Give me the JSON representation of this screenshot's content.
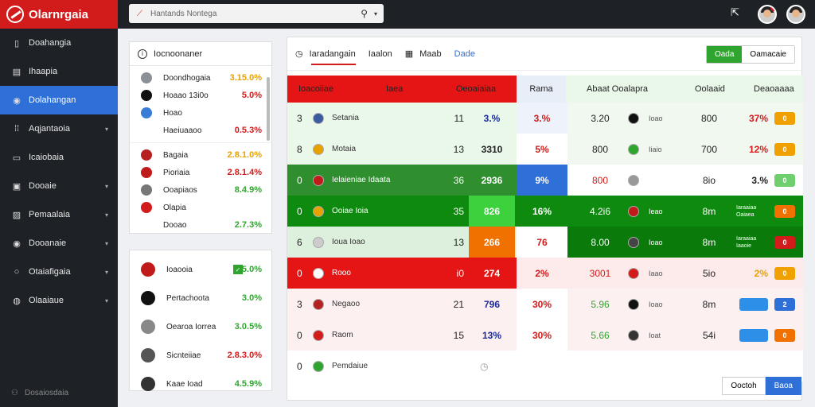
{
  "app": {
    "title": "Olarnrgaia"
  },
  "sidebar": {
    "items": [
      {
        "label": "Doahangia",
        "icon": "file-icon"
      },
      {
        "label": "Ihaapia",
        "icon": "document-icon"
      },
      {
        "label": "Dolahangan",
        "icon": "eye-icon",
        "active": true
      },
      {
        "label": "Aqjantaoia",
        "icon": "grid-icon",
        "chevron": true
      },
      {
        "label": "Icaiobaia",
        "icon": "monitor-icon"
      },
      {
        "label": "Dooaie",
        "icon": "box-icon",
        "chevron": true
      },
      {
        "label": "Pemaalaia",
        "icon": "image-icon",
        "chevron": true
      },
      {
        "label": "Dooanaie",
        "icon": "eye-icon",
        "chevron": true
      },
      {
        "label": "Otaiafigaia",
        "icon": "circle-icon",
        "chevron": true
      },
      {
        "label": "Olaaiaue",
        "icon": "globe-icon",
        "chevron": true
      }
    ],
    "footer": "Dosaiosdaia"
  },
  "search": {
    "value": "Hantands Nontega"
  },
  "left_panel": {
    "title": "Iocnoonaner",
    "groups": [
      {
        "rows": [
          {
            "name": "Doondhogaia",
            "pct": "3.15.0%",
            "color": "#e8a200",
            "crest": "#8a9096"
          },
          {
            "name": "Hoaao 13i0o",
            "pct": "5.0%",
            "color": "#d21b1b",
            "crest": "#111"
          },
          {
            "name": "Hoao",
            "pct": "",
            "color": "#222",
            "crest": "#3a7bd5"
          },
          {
            "name": "Haeiuaaoo",
            "pct": "0.5.3%",
            "color": "#d21b1b",
            "crest": ""
          }
        ]
      },
      {
        "rows": [
          {
            "name": "Bagaia",
            "pct": "2.8.1.0%",
            "color": "#e8a200",
            "crest": "#b52020"
          },
          {
            "name": "Pioriaia",
            "pct": "2.8.1.4%",
            "color": "#d21b1b",
            "crest": "#c01a1a"
          },
          {
            "name": "Ooapiaos",
            "pct": "8.4.9%",
            "color": "#2fa52f",
            "crest": "#777"
          },
          {
            "name": "Olapia",
            "pct": "",
            "color": "#222",
            "crest": "#d21b1b"
          },
          {
            "name": "Dooao",
            "pct": "2.7.3%",
            "color": "#2fa52f",
            "crest": ""
          }
        ]
      }
    ]
  },
  "left_panel2": {
    "rows": [
      {
        "name": "Ioaooia",
        "pct": "5.0%",
        "color": "#2fa52f",
        "crest": "#c01a1a",
        "check": true
      },
      {
        "name": "Pertachoota",
        "pct": "3.0%",
        "color": "#2fa52f",
        "crest": "#111"
      },
      {
        "name": "Oearoa Iorrea",
        "pct": "3.0.5%",
        "color": "#2fa52f",
        "crest": "#888"
      },
      {
        "name": "Sicnteiiae",
        "pct": "2.8.3.0%",
        "color": "#d21b1b",
        "crest": "#555"
      },
      {
        "name": "Kaae Ioad",
        "pct": "4.5.9%",
        "color": "#2fa52f",
        "crest": "#333"
      }
    ]
  },
  "tabs": [
    {
      "label": "Iaradangain",
      "icon": "clock-icon",
      "active": true
    },
    {
      "label": "Iaalon",
      "icon": ""
    },
    {
      "label": "Maab",
      "icon": "calendar-icon"
    },
    {
      "label": "Dade",
      "icon": "",
      "blue": true
    }
  ],
  "filter": {
    "on": "Oada",
    "off": "Oamacaie"
  },
  "table": {
    "headers": [
      "Ioacoiiae",
      "Iaea",
      "Oeoaiaiaa",
      "Rama",
      "Abaat Ooalapra",
      "Oolaaid",
      "Deaoaaaa"
    ],
    "rows": [
      {
        "rank": "3",
        "team": "Setania",
        "crest": "#3a5ba0",
        "pl": "11",
        "score": "3.%",
        "scoreColor": "#1a2a9a",
        "pct": "3.%",
        "pctColor": "#d21b1b",
        "away": "3.20",
        "awayColor": "#222",
        "oc": "#111",
        "op": "Ioao",
        "ot": "800",
        "ob": "37%",
        "obColor": "#d21b1b",
        "pill": "#f0a000",
        "pillTxt": "0",
        "bg": "#eaf8ea",
        "scoreBg": "",
        "pctBg": "#eef3fb",
        "rightBg": "#f0f8f0"
      },
      {
        "rank": "8",
        "team": "Motaia",
        "crest": "#e8a200",
        "pl": "13",
        "score": "3310",
        "scoreColor": "#222",
        "pct": "5%",
        "pctColor": "#d21b1b",
        "away": "800",
        "awayColor": "#222",
        "oc": "#2fa52f",
        "op": "Iiaio",
        "ot": "700",
        "ob": "12%",
        "obColor": "#d21b1b",
        "pill": "#f0a000",
        "pillTxt": "0",
        "bg": "#eaf8ea",
        "scoreBg": "",
        "pctBg": "",
        "rightBg": "#f0f8f0"
      },
      {
        "rank": "0",
        "team": "Ielaieniae Idaata",
        "crest": "#c01a1a",
        "pl": "36",
        "score": "2936",
        "scoreColor": "#fff",
        "pct": "9%",
        "pctColor": "#fff",
        "away": "800",
        "awayColor": "#d21b1b",
        "oc": "#999",
        "op": "Baga",
        "ot": "8io",
        "ob": "3.%",
        "obColor": "#222",
        "pill": "#6fcf6f",
        "pillTxt": "0",
        "bg": "#2f8f2f",
        "scoreBg": "",
        "pctBg": "#2e6fd8",
        "rightBg": "#fff",
        "dark": true
      },
      {
        "rank": "0",
        "team": "Ooiae Ioia",
        "crest": "#e8a200",
        "pl": "35",
        "score": "826",
        "scoreColor": "#fff",
        "pct": "16%",
        "pctColor": "#fff",
        "away": "4.2i6",
        "awayColor": "#fff",
        "oc": "#c01a1a",
        "op": "Ieao",
        "ot": "8m",
        "ob": "Iaraaiaa Oaiaea",
        "obColor": "#fff",
        "pill": "#f07000",
        "pillTxt": "0",
        "bg": "#0e8a0e",
        "scoreBg": "#3ed13e",
        "pctBg": "#0e8a0e",
        "rightBg": "#0e8a0e",
        "dark": true
      },
      {
        "rank": "6",
        "team": "Ioua Ioao",
        "crest": "#ccc",
        "pl": "13",
        "score": "266",
        "scoreColor": "#fff",
        "pct": "76",
        "pctColor": "#d21b1b",
        "away": "8.00",
        "awayColor": "#fff",
        "oc": "#444",
        "op": "Ioao",
        "ot": "8m",
        "ob": "Iaraaiaa Iaaoie",
        "obColor": "#fff",
        "pill": "#d21b1b",
        "pillTxt": "0",
        "bg": "#ddf0dd",
        "scoreBg": "#f07000",
        "pctBg": "",
        "rightBg": "#0a7a0a",
        "dark2": true
      },
      {
        "rank": "0",
        "team": "Rooo",
        "crest": "#fff",
        "pl": "i0",
        "score": "274",
        "scoreColor": "#fff",
        "pct": "2%",
        "pctColor": "#d21b1b",
        "away": "3001",
        "awayColor": "#d21b1b",
        "oc": "#d21b1b",
        "op": "Iaao",
        "ot": "5io",
        "ob": "2%",
        "obColor": "#e8a200",
        "pill": "#f0a000",
        "pillTxt": "0",
        "bg": "#e51515",
        "scoreBg": "",
        "pctBg": "#fdeaea",
        "rightBg": "#fdeaea",
        "red": true
      },
      {
        "rank": "3",
        "team": "Negaoo",
        "crest": "#b52020",
        "pl": "21",
        "score": "796",
        "scoreColor": "#1a2a9a",
        "pct": "30%",
        "pctColor": "#d21b1b",
        "away": "5.96",
        "awayColor": "#2fa52f",
        "oc": "#111",
        "op": "Ioao",
        "ot": "8m",
        "ob": "",
        "obColor": "#222",
        "pill": "#2e6fd8",
        "pillTxt": "2",
        "bg": "#fdf0f0",
        "scoreBg": "",
        "pctBg": "",
        "rightBg": "#fdf0f0",
        "wide": true
      },
      {
        "rank": "0",
        "team": "Raom",
        "crest": "#d21b1b",
        "pl": "15",
        "score": "13%",
        "scoreColor": "#1a2a9a",
        "pct": "30%",
        "pctColor": "#d21b1b",
        "away": "5.66",
        "awayColor": "#2fa52f",
        "oc": "#333",
        "op": "Ioat",
        "ot": "54i",
        "ob": "",
        "obColor": "#222",
        "pill": "#f07000",
        "pillTxt": "0",
        "bg": "#fdf0f0",
        "scoreBg": "",
        "pctBg": "",
        "rightBg": "#fdf0f0",
        "wide": true
      },
      {
        "rank": "0",
        "team": "Pemdaiue",
        "crest": "#2fa52f",
        "pl": "",
        "score": "",
        "scoreColor": "#222",
        "pct": "",
        "pctColor": "#222",
        "away": "",
        "awayColor": "#222",
        "oc": "",
        "op": "",
        "ot": "",
        "ob": "",
        "obColor": "#222",
        "pill": "",
        "pillTxt": "",
        "bg": "#fff",
        "scoreBg": "",
        "pctBg": "",
        "rightBg": "#fff"
      }
    ]
  },
  "pager": {
    "prev": "Ooctoh",
    "next": "Baoa"
  }
}
